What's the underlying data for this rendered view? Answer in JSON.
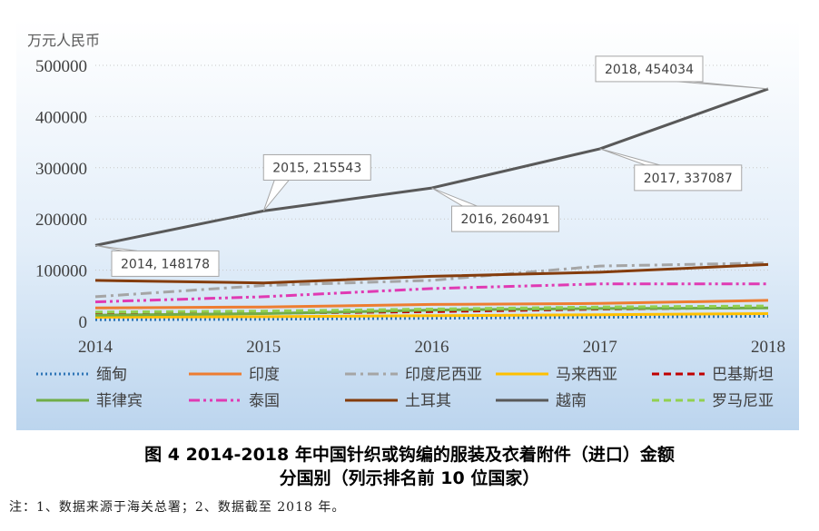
{
  "caption": {
    "line1": "图 4   2014-2018 年中国针织或钩编的服装及衣着附件（进口）金额",
    "line2": "分国别（列示排名前 10 位国家）"
  },
  "note": "注：1、数据来源于海关总署；2、数据截至 2018 年。",
  "chart_data": {
    "type": "line",
    "ylabel": "万元人民币",
    "x": [
      "2014",
      "2015",
      "2016",
      "2017",
      "2018"
    ],
    "ylim": [
      0,
      500000
    ],
    "yticks": [
      "0",
      "100000",
      "200000",
      "300000",
      "400000",
      "500000"
    ],
    "grid": true,
    "legend_position": "bottom",
    "series": [
      {
        "name": "缅甸",
        "color": "#2e75b6",
        "dash": "dot",
        "values": [
          3000,
          4000,
          6000,
          8000,
          10000
        ]
      },
      {
        "name": "印度",
        "color": "#ed7d31",
        "dash": "solid",
        "values": [
          26000,
          28000,
          33000,
          35000,
          41000
        ]
      },
      {
        "name": "印度尼西亚",
        "color": "#a5a5a5",
        "dash": "dashdot",
        "values": [
          48000,
          70000,
          80000,
          108000,
          114000
        ]
      },
      {
        "name": "马来西亚",
        "color": "#ffc000",
        "dash": "solid",
        "values": [
          8000,
          9000,
          11000,
          13000,
          15000
        ]
      },
      {
        "name": "巴基斯坦",
        "color": "#c00000",
        "dash": "dash",
        "values": [
          15000,
          16000,
          19000,
          24000,
          27000
        ]
      },
      {
        "name": "菲律宾",
        "color": "#70ad47",
        "dash": "solid",
        "values": [
          12000,
          15000,
          22000,
          25000,
          26000
        ]
      },
      {
        "name": "泰国",
        "color": "#e03ab3",
        "dash": "dashdotdot",
        "values": [
          38000,
          48000,
          64000,
          73000,
          73000
        ]
      },
      {
        "name": "土耳其",
        "color": "#843c0c",
        "dash": "solid",
        "values": [
          80000,
          75000,
          88000,
          96000,
          111000
        ]
      },
      {
        "name": "越南",
        "color": "#595959",
        "dash": "solid",
        "values": [
          148178,
          215543,
          260491,
          337087,
          454034
        ]
      },
      {
        "name": "罗马尼亚",
        "color": "#92d050",
        "dash": "dash",
        "values": [
          18000,
          20000,
          24000,
          28000,
          30000
        ]
      }
    ],
    "annotations": [
      {
        "series": "越南",
        "x": "2014",
        "value": 148178,
        "text": "2014, 148178"
      },
      {
        "series": "越南",
        "x": "2015",
        "value": 215543,
        "text": "2015, 215543"
      },
      {
        "series": "越南",
        "x": "2016",
        "value": 260491,
        "text": "2016, 260491"
      },
      {
        "series": "越南",
        "x": "2017",
        "value": 337087,
        "text": "2017, 337087"
      },
      {
        "series": "越南",
        "x": "2018",
        "value": 454034,
        "text": "2018, 454034"
      }
    ]
  }
}
